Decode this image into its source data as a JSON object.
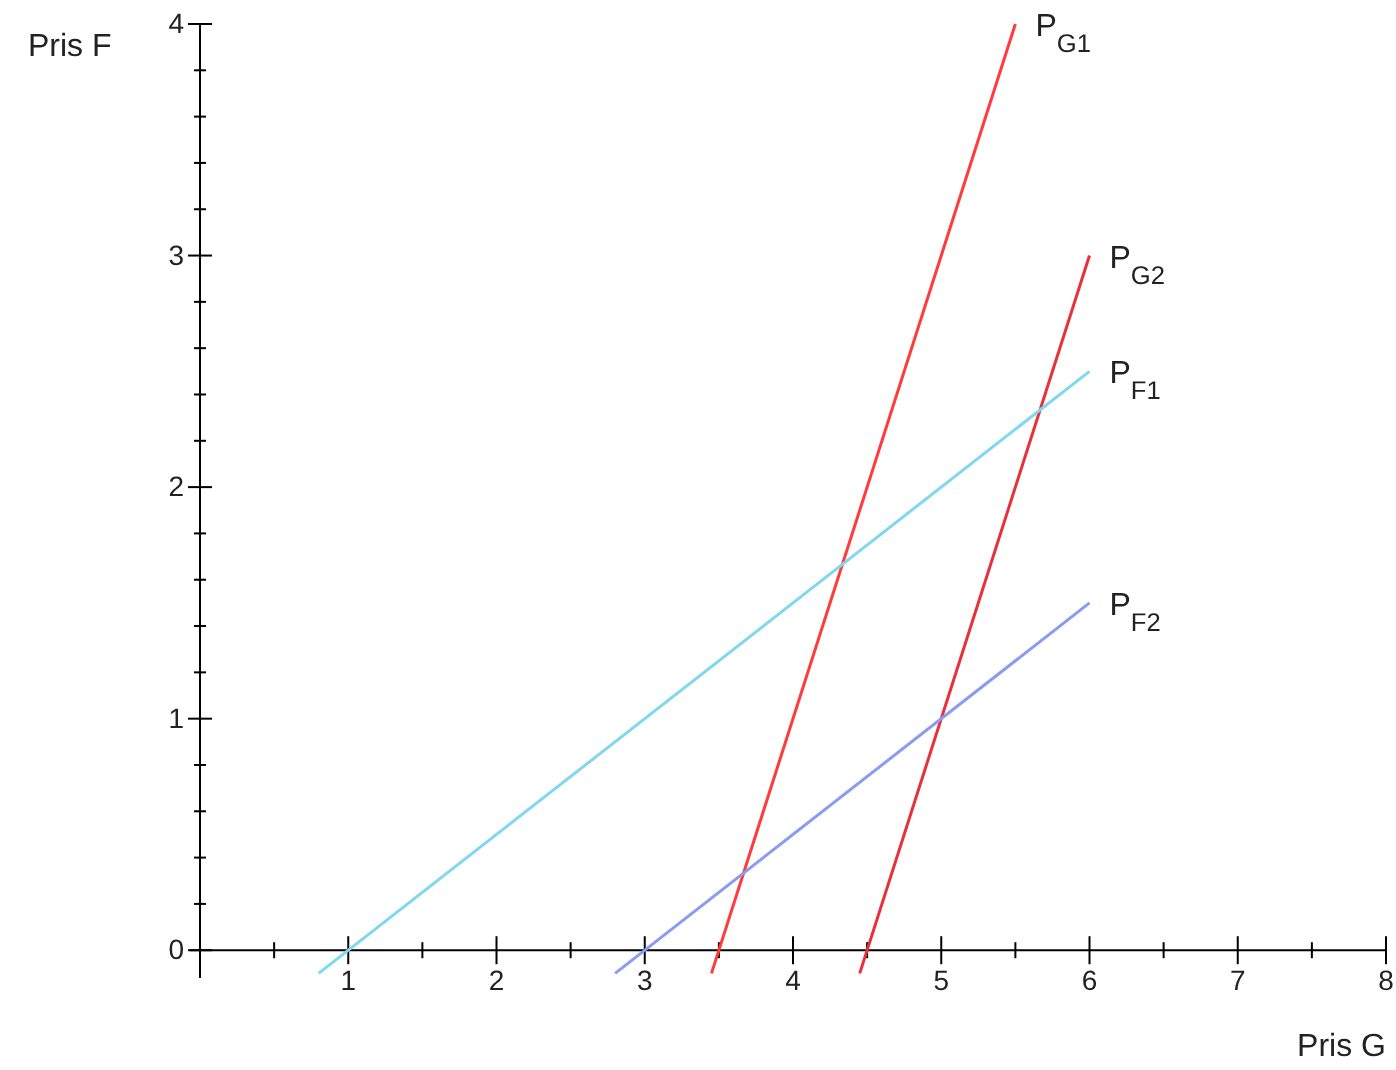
{
  "chart_data": {
    "type": "line",
    "xlabel": "Pris G",
    "ylabel": "Pris F",
    "xlim": [
      0,
      8
    ],
    "ylim": [
      -0.12,
      4
    ],
    "xticks": [
      {
        "value": 0.5,
        "label": null
      },
      1,
      {
        "value": 1.5,
        "label": null
      },
      2,
      {
        "value": 2.5,
        "label": null
      },
      3,
      {
        "value": 3.5,
        "label": null
      },
      4,
      {
        "value": 4.5,
        "label": null
      },
      5,
      {
        "value": 5.5,
        "label": null
      },
      6,
      {
        "value": 6.5,
        "label": null
      },
      7,
      {
        "value": 7.5,
        "label": null
      },
      8
    ],
    "yticks": [
      0,
      {
        "value": 0.2,
        "label": null
      },
      {
        "value": 0.4,
        "label": null
      },
      {
        "value": 0.6,
        "label": null
      },
      {
        "value": 0.8,
        "label": null
      },
      1,
      {
        "value": 1.2,
        "label": null
      },
      {
        "value": 1.4,
        "label": null
      },
      {
        "value": 1.6,
        "label": null
      },
      {
        "value": 1.8,
        "label": null
      },
      2,
      {
        "value": 2.2,
        "label": null
      },
      {
        "value": 2.4,
        "label": null
      },
      {
        "value": 2.6,
        "label": null
      },
      {
        "value": 2.8,
        "label": null
      },
      3,
      {
        "value": 3.2,
        "label": null
      },
      {
        "value": 3.4,
        "label": null
      },
      {
        "value": 3.6,
        "label": null
      },
      {
        "value": 3.8,
        "label": null
      },
      4
    ],
    "grid": false,
    "legend": false,
    "marker": "none",
    "line_style": "solid",
    "series": [
      {
        "name": "P$_{G1}$",
        "color": "#ff3b3b",
        "x": [
          3.45,
          5.5
        ],
        "values": [
          -0.1,
          4
        ]
      },
      {
        "name": "P$_{G2}$",
        "color": "#e8303a",
        "x": [
          4.45,
          6
        ],
        "values": [
          -0.1,
          3
        ]
      },
      {
        "name": "P$_{F1}$",
        "color": "#80d8f0",
        "x": [
          0.8,
          6
        ],
        "values": [
          -0.1,
          2.5
        ]
      },
      {
        "name": "P$_{F2}$",
        "color": "#8a9bf0",
        "x": [
          2.8,
          6
        ],
        "values": [
          -0.1,
          1.5
        ]
      }
    ]
  }
}
